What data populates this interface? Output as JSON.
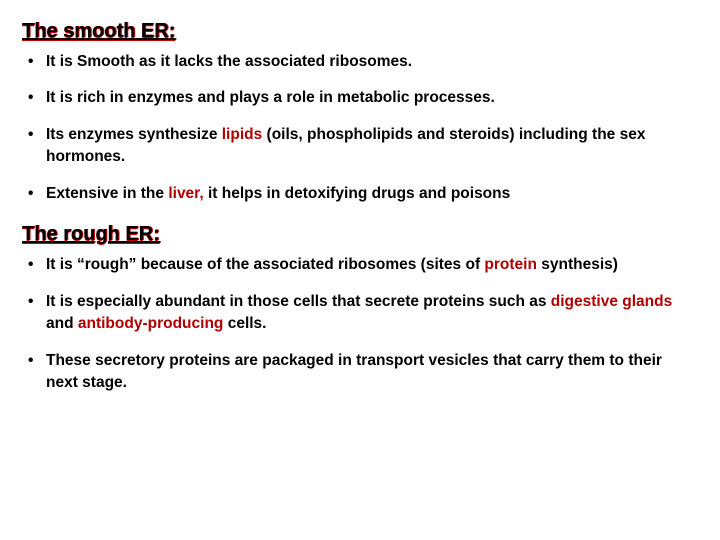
{
  "colors": {
    "text": "#000000",
    "keyword": "#b00000",
    "heading_shadow": "#cc0000",
    "background": "#ffffff"
  },
  "typography": {
    "heading_fontsize": 20,
    "body_fontsize": 15.5,
    "font_family": "Arial",
    "heading_weight": "bold",
    "body_weight": "bold"
  },
  "section1": {
    "heading": "The smooth ER:",
    "items": [
      {
        "pre": "It is Smooth as it lacks the associated ribosomes."
      },
      {
        "pre": "It is rich in enzymes and plays a role in metabolic processes."
      },
      {
        "pre": "Its enzymes synthesize ",
        "kw": "lipids",
        "post": " (oils, phospholipids and steroids) including the sex hormones."
      },
      {
        "pre": "Extensive in the ",
        "kw": "liver,",
        "post": " it helps in detoxifying drugs and poisons"
      }
    ]
  },
  "section2": {
    "heading": "The rough ER:",
    "items": [
      {
        "pre": "It is “rough” because of the associated ribosomes (sites of ",
        "kw": "protein",
        "post": " synthesis)"
      },
      {
        "pre": "It is especially abundant in those cells that secrete proteins such as ",
        "kw": "digestive glands",
        "mid": " and ",
        "kw2": "antibody-producing",
        "post": " cells."
      },
      {
        "pre": "These secretory proteins are packaged in transport vesicles that carry them to their next stage."
      }
    ]
  }
}
